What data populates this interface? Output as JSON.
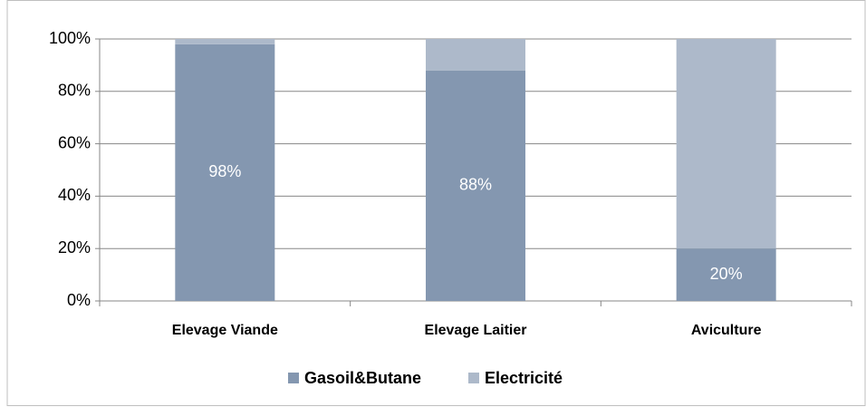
{
  "chart_data": {
    "type": "stacked_bar",
    "categories": [
      "Elevage Viande",
      "Elevage Laitier",
      "Aviculture"
    ],
    "series": [
      {
        "name": "Gasoil&Butane",
        "color": "#8497b0",
        "values": [
          98,
          88,
          20
        ],
        "value_labels": [
          "98%",
          "88%",
          "20%"
        ]
      },
      {
        "name": "Electricité",
        "color": "#adb9ca",
        "values": [
          2,
          12,
          80
        ]
      }
    ],
    "ylim": [
      0,
      100
    ],
    "yticks": [
      {
        "value": 0,
        "label": "0%"
      },
      {
        "value": 20,
        "label": "20%"
      },
      {
        "value": 40,
        "label": "40%"
      },
      {
        "value": 60,
        "label": "60%"
      },
      {
        "value": 80,
        "label": "80%"
      },
      {
        "value": 100,
        "label": "100%"
      }
    ],
    "grid": true,
    "legend": "bottom"
  }
}
